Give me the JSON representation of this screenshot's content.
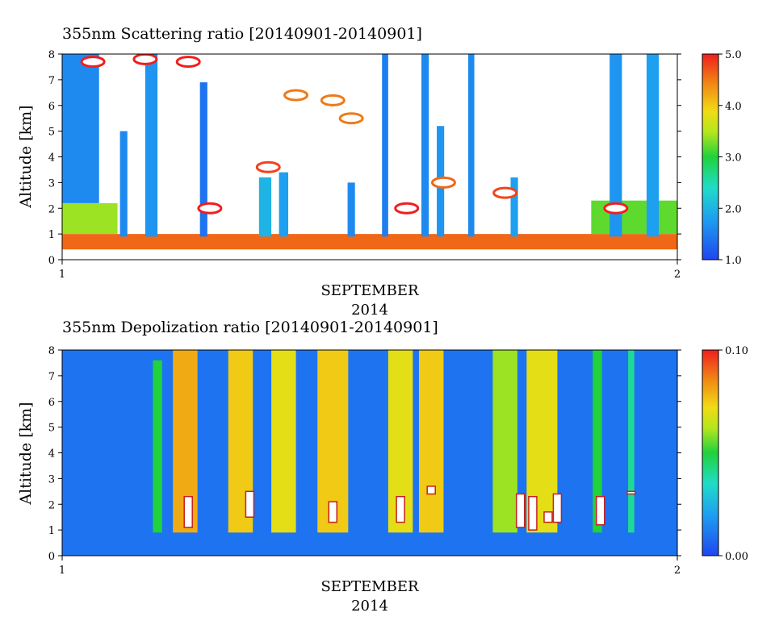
{
  "chart_data": [
    {
      "type": "heatmap",
      "title": "355nm Scattering ratio [20140901-20140901]",
      "xlabel_month": "SEPTEMBER",
      "xlabel_year": "2014",
      "ylabel": "Altitude [km]",
      "x_ticks": [
        "1",
        "2"
      ],
      "xlim": [
        1,
        2
      ],
      "y_ticks": [
        "0",
        "1",
        "2",
        "3",
        "4",
        "5",
        "6",
        "7",
        "8"
      ],
      "ylim": [
        0,
        8
      ],
      "colorbar": {
        "range": [
          1.0,
          5.0
        ],
        "ticks": [
          "1.0",
          "2.0",
          "3.0",
          "4.0",
          "5.0"
        ]
      },
      "background": "#ffffff",
      "layers": [
        {
          "x0": 0.0,
          "x1": 1.0,
          "ymin": 0.4,
          "ymax": 1.0,
          "value": 4.6
        },
        {
          "x0": 0.0,
          "x1": 0.09,
          "ymin": 1.0,
          "ymax": 2.2,
          "value": 3.4
        },
        {
          "x0": 0.0,
          "x1": 0.06,
          "ymin": 2.2,
          "ymax": 8.0,
          "value": 1.6
        },
        {
          "x0": 0.86,
          "x1": 1.0,
          "ymin": 1.0,
          "ymax": 2.3,
          "value": 3.2
        }
      ],
      "columns": [
        {
          "x": 0.1,
          "w": 0.012,
          "top": 5.0,
          "value": 1.6
        },
        {
          "x": 0.145,
          "w": 0.02,
          "top": 8.0,
          "value": 1.7
        },
        {
          "x": 0.23,
          "w": 0.012,
          "top": 6.9,
          "value": 1.4
        },
        {
          "x": 0.33,
          "w": 0.02,
          "top": 3.2,
          "value": 2.0
        },
        {
          "x": 0.36,
          "w": 0.015,
          "top": 3.4,
          "value": 1.8
        },
        {
          "x": 0.47,
          "w": 0.012,
          "top": 3.0,
          "value": 1.6
        },
        {
          "x": 0.525,
          "w": 0.01,
          "top": 8.0,
          "value": 1.5
        },
        {
          "x": 0.59,
          "w": 0.012,
          "top": 8.0,
          "value": 1.6
        },
        {
          "x": 0.615,
          "w": 0.012,
          "top": 5.2,
          "value": 1.7
        },
        {
          "x": 0.665,
          "w": 0.01,
          "top": 8.0,
          "value": 1.6
        },
        {
          "x": 0.735,
          "w": 0.012,
          "top": 3.2,
          "value": 1.8
        },
        {
          "x": 0.9,
          "w": 0.02,
          "top": 8.0,
          "value": 1.7
        },
        {
          "x": 0.96,
          "w": 0.02,
          "top": 8.0,
          "value": 1.8
        }
      ],
      "clouds": [
        {
          "x": 0.05,
          "y": 7.7,
          "value": 5.0
        },
        {
          "x": 0.135,
          "y": 7.8,
          "value": 5.0
        },
        {
          "x": 0.205,
          "y": 7.7,
          "value": 5.0
        },
        {
          "x": 0.24,
          "y": 2.0,
          "value": 5.0
        },
        {
          "x": 0.335,
          "y": 3.6,
          "value": 4.8
        },
        {
          "x": 0.38,
          "y": 6.4,
          "value": 4.5
        },
        {
          "x": 0.44,
          "y": 6.2,
          "value": 4.5
        },
        {
          "x": 0.47,
          "y": 5.5,
          "value": 4.5
        },
        {
          "x": 0.56,
          "y": 2.0,
          "value": 5.0
        },
        {
          "x": 0.62,
          "y": 3.0,
          "value": 4.6
        },
        {
          "x": 0.72,
          "y": 2.6,
          "value": 4.8
        },
        {
          "x": 0.9,
          "y": 2.0,
          "value": 5.0
        }
      ]
    },
    {
      "type": "heatmap",
      "title": "355nm Depolization ratio [20140901-20140901]",
      "xlabel_month": "SEPTEMBER",
      "xlabel_year": "2014",
      "ylabel": "Altitude [km]",
      "x_ticks": [
        "1",
        "2"
      ],
      "xlim": [
        1,
        2
      ],
      "y_ticks": [
        "0",
        "1",
        "2",
        "3",
        "4",
        "5",
        "6",
        "7",
        "8"
      ],
      "ylim": [
        0,
        8
      ],
      "colorbar": {
        "range": [
          0.0,
          0.1
        ],
        "ticks": [
          "0.00",
          "0.10"
        ]
      },
      "background_value": 0.01,
      "columns": [
        {
          "x": 0.155,
          "w": 0.015,
          "top": 7.6,
          "value": 0.05
        },
        {
          "x": 0.2,
          "w": 0.04,
          "top": 8.0,
          "value": 0.08
        },
        {
          "x": 0.29,
          "w": 0.04,
          "top": 8.0,
          "value": 0.075
        },
        {
          "x": 0.36,
          "w": 0.04,
          "top": 8.0,
          "value": 0.07
        },
        {
          "x": 0.44,
          "w": 0.05,
          "top": 8.0,
          "value": 0.075
        },
        {
          "x": 0.55,
          "w": 0.04,
          "top": 8.0,
          "value": 0.07
        },
        {
          "x": 0.6,
          "w": 0.04,
          "top": 8.0,
          "value": 0.075
        },
        {
          "x": 0.72,
          "w": 0.04,
          "top": 8.0,
          "value": 0.06
        },
        {
          "x": 0.78,
          "w": 0.05,
          "top": 8.0,
          "value": 0.07
        },
        {
          "x": 0.87,
          "w": 0.015,
          "top": 8.0,
          "value": 0.05
        },
        {
          "x": 0.925,
          "w": 0.01,
          "top": 8.0,
          "value": 0.04
        }
      ],
      "gaps": [
        {
          "x": 0.205,
          "y0": 1.1,
          "y1": 2.3
        },
        {
          "x": 0.305,
          "y0": 1.5,
          "y1": 2.5
        },
        {
          "x": 0.44,
          "y0": 1.3,
          "y1": 2.1
        },
        {
          "x": 0.55,
          "y0": 1.3,
          "y1": 2.3
        },
        {
          "x": 0.6,
          "y0": 2.4,
          "y1": 2.7
        },
        {
          "x": 0.745,
          "y0": 1.1,
          "y1": 2.4
        },
        {
          "x": 0.765,
          "y0": 1.0,
          "y1": 2.3
        },
        {
          "x": 0.79,
          "y0": 1.3,
          "y1": 1.7
        },
        {
          "x": 0.805,
          "y0": 1.3,
          "y1": 2.4
        },
        {
          "x": 0.875,
          "y0": 1.2,
          "y1": 2.3
        },
        {
          "x": 0.925,
          "y0": 2.4,
          "y1": 2.5
        }
      ]
    }
  ]
}
